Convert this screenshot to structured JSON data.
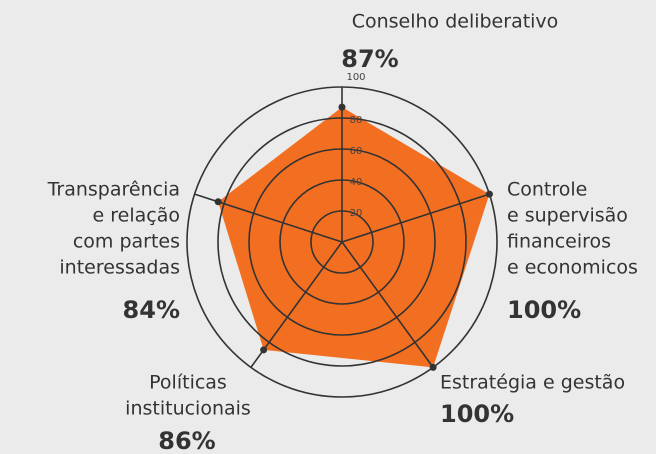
{
  "chart_data": {
    "type": "radar",
    "categories": [
      [
        "Conselho deliberativo"
      ],
      [
        "Controle",
        "e supervisão",
        "financeiros",
        "e economicos"
      ],
      [
        "Estratégia e gestão"
      ],
      [
        "Políticas",
        "institucionais"
      ],
      [
        "Transparência",
        "e relação",
        "com partes",
        "interessadas"
      ]
    ],
    "values": [
      87,
      100,
      100,
      86,
      84
    ],
    "value_labels": [
      "87%",
      "100%",
      "100%",
      "86%",
      "84%"
    ],
    "color": "#f26f21",
    "rlim": [
      0,
      100
    ],
    "rticks": [
      20,
      40,
      60,
      80,
      100
    ]
  }
}
